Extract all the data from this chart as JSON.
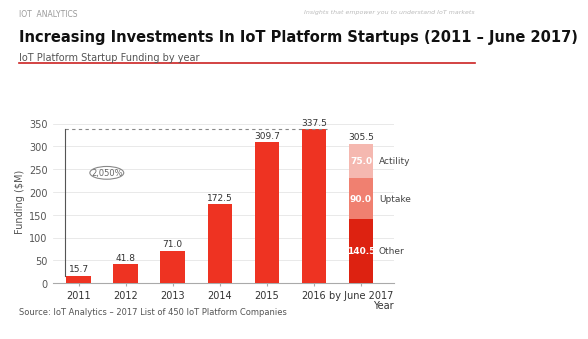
{
  "title": "Increasing Investments In IoT Platform Startups (2011 – June 2017)",
  "subtitle": "IoT Platform Startup Funding by year",
  "ylabel": "Funding ($M)",
  "xlabel": "Year",
  "header_left": "IOT  ANALYTICS",
  "header_right": "Insights that empower you to understand IoT markets",
  "source": "Source: IoT Analytics – 2017 List of 450 IoT Platform Companies",
  "categories": [
    "2011",
    "2012",
    "2013",
    "2014",
    "2015",
    "2016",
    "by June 2017"
  ],
  "values": [
    15.7,
    41.8,
    71.0,
    172.5,
    309.7,
    337.5,
    null
  ],
  "stacked_other": 140.5,
  "stacked_uptake": 90.0,
  "stacked_actility": 75.0,
  "bar_color": "#ee3322",
  "bar_color_other": "#dd2211",
  "bar_color_uptake": "#f08070",
  "bar_color_actility": "#f5b8b0",
  "ylim": [
    0,
    360
  ],
  "yticks": [
    0,
    50,
    100,
    150,
    200,
    250,
    300,
    350
  ],
  "growth_annotation": "2,050%",
  "dotted_line_y": 337.5,
  "bg_color": "#ffffff",
  "grid_color": "#e0e0e0",
  "title_fontsize": 10.5,
  "subtitle_fontsize": 7,
  "label_fontsize": 6.5,
  "tick_fontsize": 7,
  "source_fontsize": 6
}
